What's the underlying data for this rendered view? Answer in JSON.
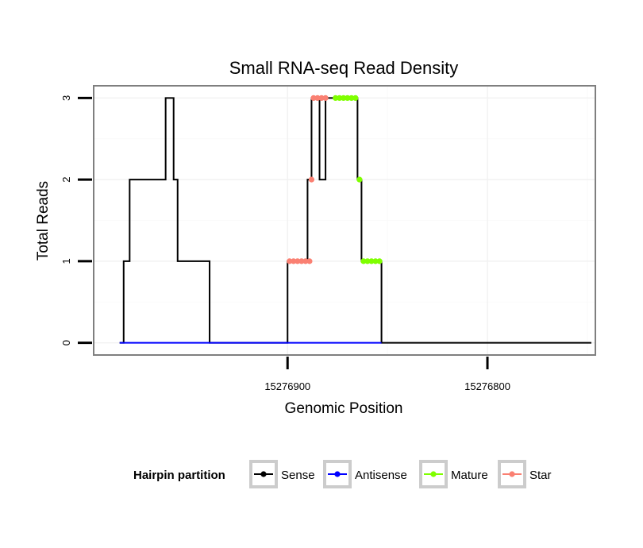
{
  "chart_data": {
    "type": "line",
    "title": "Small RNA-seq Read Density",
    "xlabel": "Genomic Position",
    "ylabel": "Total Reads",
    "x_reversed": true,
    "xlim": [
      15276997,
      15276746
    ],
    "ylim": [
      -0.15,
      3.15
    ],
    "x_ticks": [
      15276900,
      15276800
    ],
    "x_tick_labels": [
      "15276900",
      "15276800"
    ],
    "y_ticks": [
      0,
      1,
      2,
      3
    ],
    "y_tick_labels": [
      "0",
      "1",
      "2",
      "3"
    ],
    "grid": true,
    "legend": {
      "title": "Hairpin partition",
      "position": "bottom",
      "entries": [
        {
          "name": "Sense",
          "color": "#000000"
        },
        {
          "name": "Antisense",
          "color": "#0000ff"
        },
        {
          "name": "Mature",
          "color": "#7fff00"
        },
        {
          "name": "Star",
          "color": "#fa8072"
        }
      ]
    },
    "series": [
      {
        "name": "Sense",
        "color": "#000000",
        "x": [
          15276984,
          15276982,
          15276982,
          15276979,
          15276979,
          15276977,
          15276977,
          15276961,
          15276961,
          15276957,
          15276957,
          15276955,
          15276955,
          15276952,
          15276952,
          15276939,
          15276939,
          15276938,
          15276938,
          15276900,
          15276900,
          15276890,
          15276890,
          15276888,
          15276888,
          15276884,
          15276884,
          15276881,
          15276881,
          15276877,
          15276877,
          15276865,
          15276865,
          15276863,
          15276863,
          15276853,
          15276853,
          15276748
        ],
        "y": [
          0,
          0,
          1,
          1,
          2,
          2,
          2,
          2,
          3,
          3,
          2,
          2,
          1,
          1,
          1,
          1,
          0,
          0,
          0,
          0,
          1,
          1,
          2,
          2,
          3,
          3,
          2,
          2,
          3,
          3,
          3,
          3,
          2,
          2,
          1,
          1,
          0,
          0
        ]
      },
      {
        "name": "Antisense",
        "color": "#0000ff",
        "x": [
          15276984,
          15276853
        ],
        "y": [
          0,
          0
        ]
      },
      {
        "name": "Star",
        "color": "#fa8072",
        "x": [
          15276899,
          15276897,
          15276895,
          15276893,
          15276891,
          15276889,
          15276888,
          15276887,
          15276885,
          15276883,
          15276881
        ],
        "y": [
          1,
          1,
          1,
          1,
          1,
          1,
          2,
          3,
          3,
          3,
          3
        ]
      },
      {
        "name": "Mature",
        "color": "#7fff00",
        "x": [
          15276876,
          15276874,
          15276872,
          15276870,
          15276868,
          15276866,
          15276864,
          15276862,
          15276860,
          15276858,
          15276856,
          15276854
        ],
        "y": [
          3,
          3,
          3,
          3,
          3,
          3,
          2,
          1,
          1,
          1,
          1,
          1
        ]
      }
    ]
  }
}
